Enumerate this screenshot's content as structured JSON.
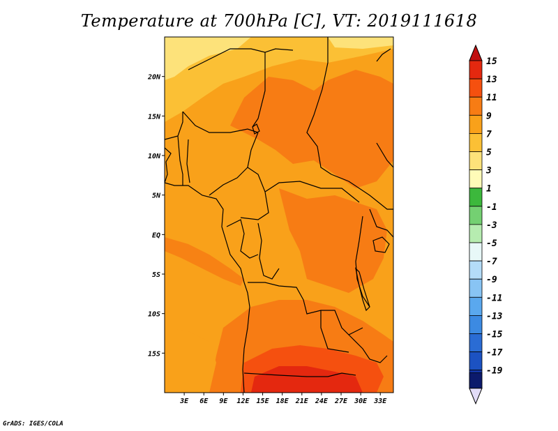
{
  "title": "Temperature at 700hPa [C], VT: 2019111618",
  "credit": "GrADS: IGES/COLA",
  "map": {
    "region": "Central Africa",
    "lon_range": [
      0,
      35
    ],
    "lat_range": [
      -20,
      25
    ],
    "x_ticks": [
      {
        "value": 3,
        "label": "3E"
      },
      {
        "value": 6,
        "label": "6E"
      },
      {
        "value": 9,
        "label": "9E"
      },
      {
        "value": 12,
        "label": "12E"
      },
      {
        "value": 15,
        "label": "15E"
      },
      {
        "value": 18,
        "label": "18E"
      },
      {
        "value": 21,
        "label": "21E"
      },
      {
        "value": 24,
        "label": "24E"
      },
      {
        "value": 27,
        "label": "27E"
      },
      {
        "value": 30,
        "label": "30E"
      },
      {
        "value": 33,
        "label": "33E"
      }
    ],
    "y_ticks": [
      {
        "value": 20,
        "label": "20N"
      },
      {
        "value": 15,
        "label": "15N"
      },
      {
        "value": 10,
        "label": "10N"
      },
      {
        "value": 5,
        "label": "5N"
      },
      {
        "value": 0,
        "label": "EQ"
      },
      {
        "value": -5,
        "label": "5S"
      },
      {
        "value": -10,
        "label": "10S"
      },
      {
        "value": -15,
        "label": "15S"
      }
    ]
  },
  "colorbar": {
    "levels": [
      {
        "label": "15",
        "color": "#e4280f"
      },
      {
        "label": "13",
        "color": "#f5500f"
      },
      {
        "label": "11",
        "color": "#f77c14"
      },
      {
        "label": "9",
        "color": "#f9a11a"
      },
      {
        "label": "7",
        "color": "#fbc035"
      },
      {
        "label": "5",
        "color": "#fde27a"
      },
      {
        "label": "3",
        "color": "#fffbb8"
      },
      {
        "label": "1",
        "color": "#3cb83c"
      },
      {
        "label": "-1",
        "color": "#74d072"
      },
      {
        "label": "-3",
        "color": "#b6ecb0"
      },
      {
        "label": "-5",
        "color": "#e8f8f8"
      },
      {
        "label": "-7",
        "color": "#b4dcf8"
      },
      {
        "label": "-9",
        "color": "#88c4f4"
      },
      {
        "label": "-11",
        "color": "#5aa8ee"
      },
      {
        "label": "-13",
        "color": "#3c8ae2"
      },
      {
        "label": "-15",
        "color": "#2a6cd4"
      },
      {
        "label": "-17",
        "color": "#1c52c2"
      },
      {
        "label": "-19",
        "color": "#1436a8"
      }
    ],
    "top_arrow_color": "#c01010",
    "bottom_arrow_color": "#e2dcf8",
    "bottom_extra_color": "#0c1a6c"
  }
}
